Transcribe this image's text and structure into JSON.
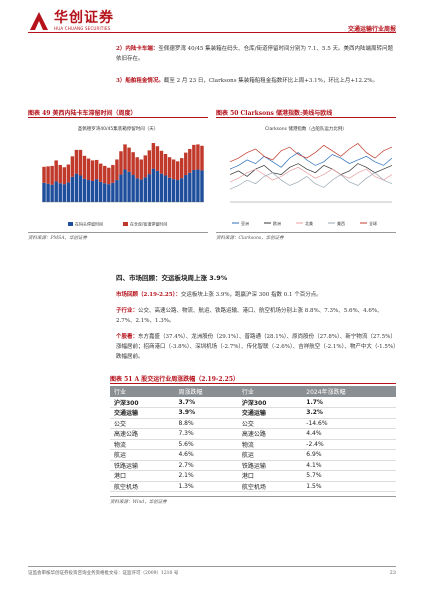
{
  "header": {
    "logo_cn": "华创证券",
    "logo_en": "HUA CHUANG SECURITIES",
    "report_title": "交通运输行业周报"
  },
  "paras": {
    "p2_label": "2）内陆卡车端：",
    "p2_text": "圣佩德罗湾 40/45 集装箱在码头、仓库/街道停留时间分别为 7.1、5.5 天。美西内陆端周转问题依旧存在。",
    "p3_label": "3）船舶租金情况。",
    "p3_text": "截至 2 月 23 日，Clarksons 集装箱船租金指数环比上周+3.1%，环比上月+12.2%。"
  },
  "fig49": {
    "title": "图表 49 美西内陆卡车滞留时间（周度）",
    "inner_title": "圣佩德罗湾40/45集装箱停留时间（天）",
    "legend": [
      "在码头停留时间",
      "在仓库/街道停留时间"
    ],
    "source": "资料来源：PMSA，华创证券"
  },
  "fig50": {
    "title": "图表 50 Clarksons 储港指数:美线与欧线",
    "inner_title": "Clarksons 储港指数（占船队运力比例）",
    "legend": [
      "亚洲",
      "欧洲",
      "北美",
      "美西",
      "全球"
    ],
    "source": "资料来源：Clarksons，华创证券"
  },
  "section_title": "四、市场回顾：交运板块周上涨 3.9%",
  "market": {
    "p1_label": "市场回顾（2.19-2.25）：",
    "p1_text": "交运板块上涨 3.9%，跑赢沪深 300 指数 0.1 个百分点。",
    "p2_label": "子行业：",
    "p2_text": "公交、高速公路、物流、航运、铁路运输、港口、航空机场分别上涨 8.8%、7.3%、5.6%、4.6%、2.7%、2.1%、1.3%。",
    "p3_label": "个股看：",
    "p3_text": "东方嘉盛（37.4%）、龙洲股份（29.1%）、普路通（28.1%）、原尚股份（27.8%）、新宁物流（27.5%）涨幅居前；招商港口（-3.8%）、深圳机场（-2.7%）、传化智联（-2.6%）、吉祥航空（-2.1%）、物产中大（-1.5%）跌幅居前。"
  },
  "fig51": {
    "title": "图表 51 A 股交运行业周涨跌幅（2.19-2.25）",
    "headers": [
      "行业",
      "周涨跌幅",
      "行业",
      "2024年涨跌幅"
    ],
    "rows": [
      {
        "a": "沪深300",
        "b": "3.7%",
        "c": "沪深300",
        "d": "1.7%",
        "bold": true
      },
      {
        "a": "交通运输",
        "b": "3.9%",
        "c": "交通运输",
        "d": "3.2%",
        "bold": true
      },
      {
        "a": "公交",
        "b": "8.8%",
        "c": "公交",
        "d": "-14.6%"
      },
      {
        "a": "高速公路",
        "b": "7.3%",
        "c": "高速公路",
        "d": "4.4%"
      },
      {
        "a": "物流",
        "b": "5.6%",
        "c": "物流",
        "d": "-2.4%"
      },
      {
        "a": "航运",
        "b": "4.6%",
        "c": "航运",
        "d": "6.9%"
      },
      {
        "a": "铁路运输",
        "b": "2.7%",
        "c": "铁路运输",
        "d": "4.1%"
      },
      {
        "a": "港口",
        "b": "2.1%",
        "c": "港口",
        "d": "5.7%"
      },
      {
        "a": "航空机场",
        "b": "1.3%",
        "c": "航空机场",
        "d": "1.5%"
      }
    ],
    "source": "资料来源：Wind，华创证券"
  },
  "footer": {
    "text": "证监会审核华创证券投资咨询业务资格批文号：证监许可（2009）1210 号",
    "page": "23"
  },
  "colors": {
    "brand_red": "#b5121b",
    "bar_blue": "#1f4e9c",
    "bar_red": "#c0392b"
  },
  "chart_data": [
    {
      "type": "bar",
      "title": "圣佩德罗湾40/45集装箱停留时间（天）",
      "series": [
        {
          "name": "在码头停留时间",
          "values": [
            4.2,
            4.0,
            3.8,
            4.5,
            4.1,
            3.9,
            4.3,
            5.5,
            6.2,
            5.8,
            5.1,
            4.8,
            4.6,
            5.0,
            4.4,
            4.1,
            3.9,
            4.2,
            4.8,
            6.0,
            7.1,
            6.6,
            5.9,
            5.2,
            4.9,
            5.4,
            6.1,
            7.3,
            6.8,
            6.2,
            5.8,
            5.3,
            5.0,
            4.8,
            5.2,
            5.9,
            6.4,
            7.0,
            7.1,
            6.9
          ]
        },
        {
          "name": "在仓库/街道停留时间",
          "values": [
            3.5,
            3.8,
            4.1,
            4.6,
            4.0,
            3.7,
            3.9,
            4.5,
            5.2,
            5.6,
            5.0,
            4.7,
            4.5,
            4.2,
            4.0,
            3.8,
            3.6,
            3.9,
            4.5,
            5.1,
            5.5,
            5.3,
            5.0,
            4.6,
            4.4,
            4.8,
            5.2,
            5.6,
            5.4,
            5.0,
            4.7,
            4.5,
            4.3,
            4.1,
            4.4,
            4.9,
            5.2,
            5.5,
            5.5,
            5.4
          ]
        }
      ],
      "ylim": [
        0,
        14
      ]
    },
    {
      "type": "line",
      "title": "Clarksons 储港指数（占船队运力比例）",
      "series": [
        {
          "name": "亚洲",
          "values": [
            33,
            35,
            38,
            36,
            40,
            37,
            34,
            39,
            42,
            38,
            35,
            37,
            41,
            39,
            36,
            38,
            40,
            37,
            35,
            39
          ]
        },
        {
          "name": "欧洲",
          "values": [
            30,
            32,
            29,
            33,
            35,
            31,
            30,
            34,
            36,
            33,
            31,
            35,
            33,
            30,
            32,
            36,
            34,
            31,
            33,
            35
          ]
        },
        {
          "name": "北美",
          "values": [
            26,
            28,
            31,
            33,
            30,
            27,
            29,
            32,
            34,
            31,
            28,
            30,
            33,
            30,
            28,
            31,
            33,
            29,
            27,
            30
          ]
        },
        {
          "name": "美西",
          "values": [
            22,
            24,
            27,
            25,
            29,
            31,
            27,
            24,
            26,
            29,
            25,
            23,
            27,
            30,
            26,
            24,
            28,
            31,
            27,
            25
          ]
        },
        {
          "name": "全球",
          "values": [
            37,
            39,
            42,
            44,
            40,
            38,
            43,
            45,
            41,
            39,
            42,
            46,
            43,
            40,
            44,
            47,
            42,
            39,
            43,
            45
          ]
        }
      ],
      "ylim": [
        15,
        50
      ]
    }
  ]
}
